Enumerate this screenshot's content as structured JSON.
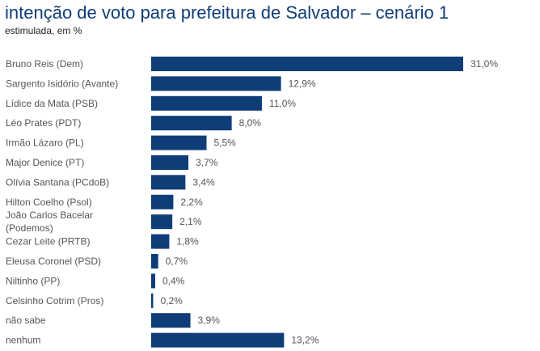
{
  "header": {
    "title": "intenção de voto para prefeitura de Salvador – cenário 1",
    "subtitle": "estimulada, em %"
  },
  "chart_data": {
    "type": "bar",
    "orientation": "horizontal",
    "title": "intenção de voto para prefeitura de Salvador – cenário 1",
    "subtitle": "estimulada, em %",
    "categories": [
      [
        "Bruno Reis (Dem)"
      ],
      [
        "Sargento Isidório (Avante)"
      ],
      [
        "Lídice da Mata (PSB)"
      ],
      [
        "Léo Prates (PDT)"
      ],
      [
        "Irmão Lázaro (PL)"
      ],
      [
        "Major Denice (PT)"
      ],
      [
        "Olívia Santana (PCdoB)"
      ],
      [
        "Hilton Coelho (Psol)"
      ],
      [
        "João Carlos Bacelar",
        "(Podemos)"
      ],
      [
        "Cezar Leite (PRTB)"
      ],
      [
        "Eleusa Coronel (PSD)"
      ],
      [
        "Niltinho (PP)"
      ],
      [
        "Celsinho Cotrim (Pros)"
      ],
      [
        "não sabe"
      ],
      [
        "nenhum"
      ]
    ],
    "values": [
      31.0,
      12.9,
      11.0,
      8.0,
      5.5,
      3.7,
      3.4,
      2.2,
      2.1,
      1.8,
      0.7,
      0.4,
      0.2,
      3.9,
      13.2
    ],
    "value_labels": [
      "31,0%",
      "12,9%",
      "11,0%",
      "8,0%",
      "5,5%",
      "3,7%",
      "3,4%",
      "2,2%",
      "2,1%",
      "1,8%",
      "0,7%",
      "0,4%",
      "0,2%",
      "3,9%",
      "13,2%"
    ],
    "xlim": [
      0,
      31.0
    ],
    "grid": false,
    "legend": "none",
    "colors": {
      "bar": "#0f3d78",
      "title": "#0f3d78",
      "label": "#555555"
    }
  }
}
